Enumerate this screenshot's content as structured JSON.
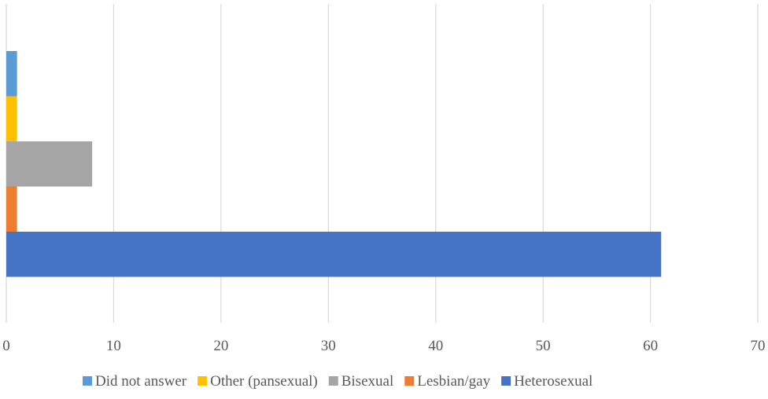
{
  "chart_data": {
    "type": "bar",
    "orientation": "horizontal",
    "xlim": [
      0,
      70
    ],
    "x_ticks": [
      "0",
      "10",
      "20",
      "30",
      "40",
      "50",
      "60",
      "70"
    ],
    "grid": "vertical",
    "legend_position": "bottom",
    "series": [
      {
        "name": "Did not answer",
        "value": 1,
        "color": "#5b9bd5"
      },
      {
        "name": "Other (pansexual)",
        "value": 1,
        "color": "#ffc000"
      },
      {
        "name": "Bisexual",
        "value": 8,
        "color": "#a5a5a5"
      },
      {
        "name": "Lesbian/gay",
        "value": 1,
        "color": "#ed7d31"
      },
      {
        "name": "Heterosexual",
        "value": 61,
        "color": "#4472c4"
      }
    ]
  }
}
